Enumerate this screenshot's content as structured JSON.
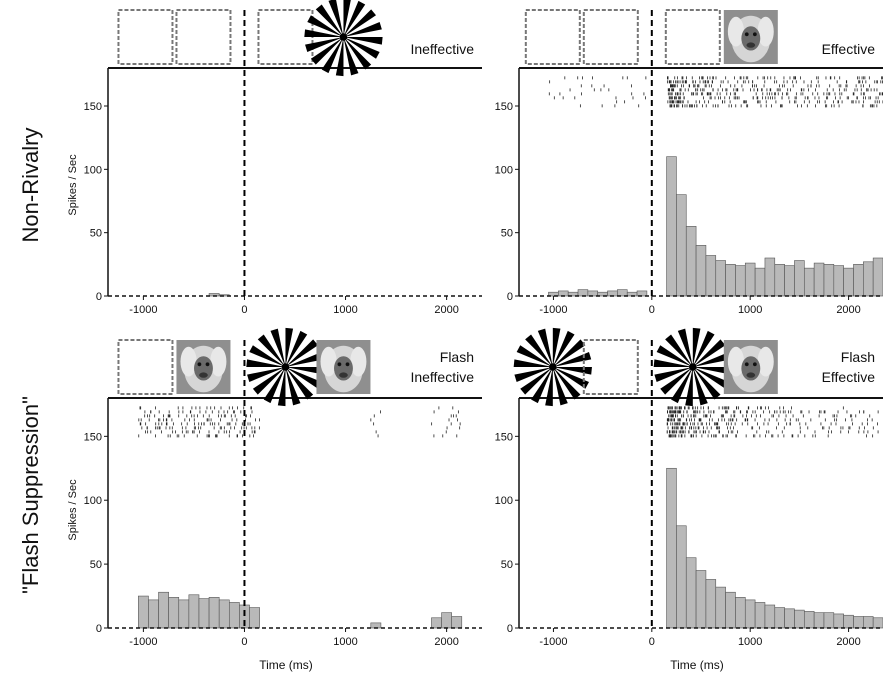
{
  "figure": {
    "row_labels": [
      "Non-Rivalry",
      "\"Flash Suppression\""
    ],
    "ylabel": "Spikes / Sec",
    "xlabel": "Time (ms)"
  },
  "colors": {
    "histogram_fill": "#b9b9b9",
    "histogram_edge": "#555555",
    "raster_tick": "#222222",
    "axis": "#111111",
    "stimulus_box_border": "#777777"
  },
  "chart_data": [
    {
      "type": "bar",
      "panel": "top-left",
      "condition_label_lines": [
        "Ineffective"
      ],
      "stimuli_before": [
        "blank",
        "blank"
      ],
      "stimuli_after": [
        "blank",
        "sunburst-icon"
      ],
      "x": [
        -1000,
        -900,
        -800,
        -700,
        -600,
        -500,
        -400,
        -300,
        -200,
        -100,
        0,
        100,
        200,
        300,
        400,
        500,
        600,
        700,
        800,
        900,
        1000,
        1100,
        1200,
        1300,
        1400,
        1500,
        1600,
        1700,
        1800,
        1900,
        2000,
        2100,
        2200,
        2300
      ],
      "values": [
        0,
        0,
        0,
        0,
        0,
        0,
        0,
        2,
        1,
        0,
        0,
        0,
        0,
        0,
        0,
        0,
        0,
        0,
        0,
        0,
        0,
        0,
        0,
        0,
        0,
        0,
        0,
        0,
        0,
        0,
        0,
        0,
        0,
        0
      ],
      "xlim": [
        -1350,
        2350
      ],
      "ylim": [
        0,
        180
      ],
      "xticks": [
        -1000,
        0,
        1000,
        2000
      ],
      "yticks": [
        0,
        50,
        100,
        150
      ],
      "stimulus_onset": 0,
      "grid": false
    },
    {
      "type": "bar",
      "panel": "top-right",
      "condition_label_lines": [
        "Effective"
      ],
      "stimuli_before": [
        "blank",
        "blank"
      ],
      "stimuli_after": [
        "blank",
        "monkey-face-icon"
      ],
      "x": [
        -1000,
        -900,
        -800,
        -700,
        -600,
        -500,
        -400,
        -300,
        -200,
        -100,
        0,
        100,
        200,
        300,
        400,
        500,
        600,
        700,
        800,
        900,
        1000,
        1100,
        1200,
        1300,
        1400,
        1500,
        1600,
        1700,
        1800,
        1900,
        2000,
        2100,
        2200,
        2300
      ],
      "values": [
        3,
        4,
        3,
        5,
        4,
        3,
        4,
        5,
        3,
        4,
        0,
        0,
        110,
        80,
        55,
        40,
        32,
        28,
        25,
        24,
        26,
        22,
        30,
        25,
        24,
        28,
        22,
        26,
        25,
        24,
        22,
        25,
        27,
        30
      ],
      "xlim": [
        -1350,
        2350
      ],
      "ylim": [
        0,
        180
      ],
      "xticks": [
        -1000,
        0,
        1000,
        2000
      ],
      "yticks": [
        0,
        50,
        100,
        150
      ],
      "stimulus_onset": 0,
      "grid": false
    },
    {
      "type": "bar",
      "panel": "bottom-left",
      "condition_label_lines": [
        "Flash",
        "Ineffective"
      ],
      "stimuli_before": [
        "blank",
        "monkey-face-icon"
      ],
      "stimuli_after": [
        "sunburst-icon",
        "monkey-face-icon"
      ],
      "x": [
        -1000,
        -900,
        -800,
        -700,
        -600,
        -500,
        -400,
        -300,
        -200,
        -100,
        0,
        100,
        200,
        300,
        400,
        500,
        600,
        700,
        800,
        900,
        1000,
        1100,
        1200,
        1300,
        1400,
        1500,
        1600,
        1700,
        1800,
        1900,
        2000,
        2100,
        2200,
        2300
      ],
      "values": [
        25,
        22,
        28,
        24,
        22,
        26,
        23,
        24,
        22,
        20,
        18,
        16,
        0,
        0,
        0,
        0,
        0,
        0,
        0,
        0,
        0,
        0,
        0,
        4,
        0,
        0,
        0,
        0,
        0,
        8,
        12,
        9,
        0,
        0
      ],
      "xlim": [
        -1350,
        2350
      ],
      "ylim": [
        0,
        180
      ],
      "xticks": [
        -1000,
        0,
        1000,
        2000
      ],
      "yticks": [
        0,
        50,
        100,
        150
      ],
      "stimulus_onset": 0,
      "grid": false
    },
    {
      "type": "bar",
      "panel": "bottom-right",
      "condition_label_lines": [
        "Flash",
        "Effective"
      ],
      "stimuli_before": [
        "sunburst-icon",
        "blank"
      ],
      "stimuli_after": [
        "sunburst-icon",
        "monkey-face-icon"
      ],
      "x": [
        -1000,
        -900,
        -800,
        -700,
        -600,
        -500,
        -400,
        -300,
        -200,
        -100,
        0,
        100,
        200,
        300,
        400,
        500,
        600,
        700,
        800,
        900,
        1000,
        1100,
        1200,
        1300,
        1400,
        1500,
        1600,
        1700,
        1800,
        1900,
        2000,
        2100,
        2200,
        2300
      ],
      "values": [
        0,
        0,
        0,
        0,
        0,
        0,
        0,
        0,
        0,
        0,
        0,
        0,
        125,
        80,
        55,
        45,
        38,
        32,
        28,
        24,
        22,
        20,
        18,
        16,
        15,
        14,
        13,
        12,
        12,
        11,
        10,
        9,
        9,
        8
      ],
      "xlim": [
        -1350,
        2350
      ],
      "ylim": [
        0,
        180
      ],
      "xticks": [
        -1000,
        0,
        1000,
        2000
      ],
      "yticks": [
        0,
        50,
        100,
        150
      ],
      "stimulus_onset": 0,
      "grid": false
    }
  ]
}
